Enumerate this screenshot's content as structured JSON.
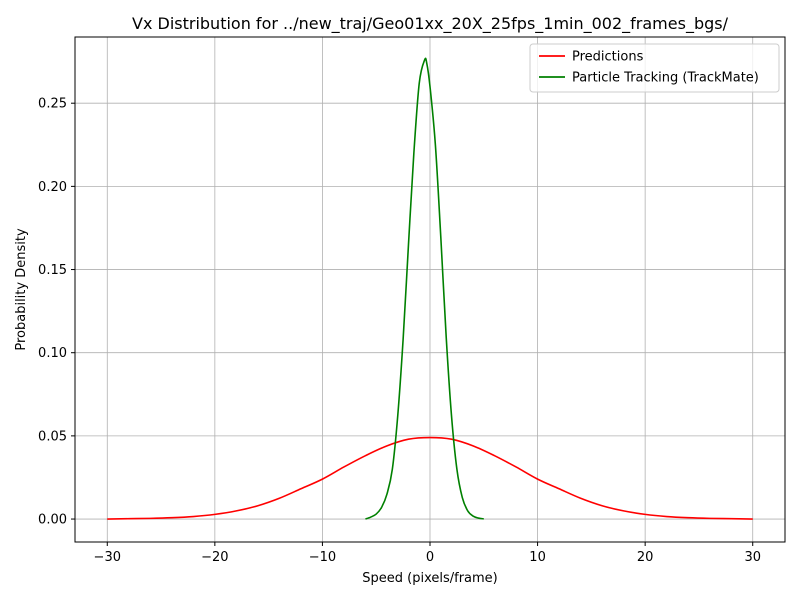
{
  "chart_data": {
    "type": "line",
    "title": "Vx Distribution for ../new_traj/Geo01xx_20X_25fps_1min_002_frames_bgs/",
    "xlabel": "Speed (pixels/frame)",
    "ylabel": "Probability Density",
    "xlim": [
      -33,
      33
    ],
    "ylim": [
      -0.0138,
      0.2898
    ],
    "xticks": [
      -30,
      -20,
      -10,
      0,
      10,
      20,
      30
    ],
    "xtick_labels": [
      "−30",
      "−20",
      "−10",
      "0",
      "10",
      "20",
      "30"
    ],
    "yticks": [
      0.0,
      0.05,
      0.1,
      0.15,
      0.2,
      0.25
    ],
    "ytick_labels": [
      "0.00",
      "0.05",
      "0.10",
      "0.15",
      "0.20",
      "0.25"
    ],
    "grid": true,
    "legend_position": "top-right",
    "series": [
      {
        "name": "Predictions",
        "color": "#ff0000",
        "x": [
          -30,
          -28,
          -26,
          -24,
          -22,
          -20,
          -18,
          -16,
          -14,
          -12,
          -10,
          -8,
          -6,
          -4,
          -2,
          0,
          2,
          4,
          6,
          8,
          10,
          12,
          14,
          16,
          18,
          20,
          22,
          24,
          26,
          28,
          30
        ],
        "y": [
          0.0,
          0.0002,
          0.0004,
          0.0008,
          0.0015,
          0.0028,
          0.0049,
          0.008,
          0.0125,
          0.0182,
          0.024,
          0.0313,
          0.0381,
          0.044,
          0.048,
          0.049,
          0.048,
          0.044,
          0.0381,
          0.0313,
          0.024,
          0.0182,
          0.0125,
          0.008,
          0.0049,
          0.0028,
          0.0015,
          0.0008,
          0.0004,
          0.0002,
          0.0
        ]
      },
      {
        "name": "Particle Tracking (TrackMate)",
        "color": "#008000",
        "x": [
          -6.0,
          -5.5,
          -5.0,
          -4.5,
          -4.0,
          -3.5,
          -3.0,
          -2.5,
          -2.0,
          -1.5,
          -1.0,
          -0.5,
          -0.3,
          0.0,
          0.5,
          1.0,
          1.5,
          2.0,
          2.5,
          3.0,
          3.5,
          4.0,
          4.5,
          5.0
        ],
        "y": [
          0.0,
          0.0012,
          0.003,
          0.007,
          0.015,
          0.03,
          0.062,
          0.108,
          0.165,
          0.22,
          0.262,
          0.276,
          0.274,
          0.26,
          0.225,
          0.17,
          0.11,
          0.062,
          0.03,
          0.013,
          0.005,
          0.0018,
          0.0006,
          0.0001
        ]
      }
    ]
  }
}
